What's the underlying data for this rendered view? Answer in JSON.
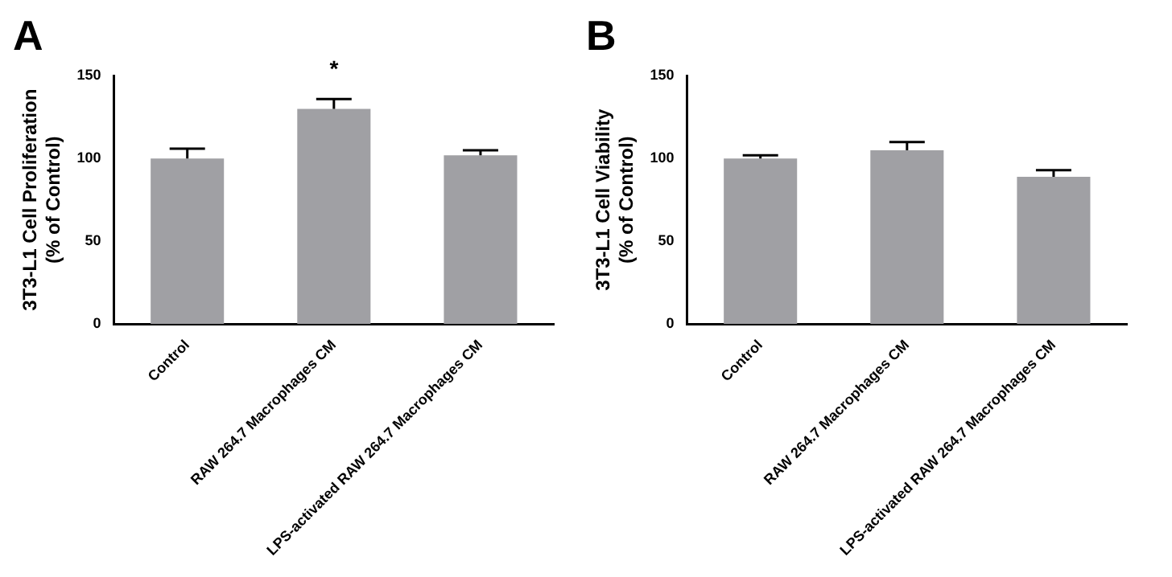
{
  "chart_data": [
    {
      "type": "bar",
      "title": "A",
      "ylabel": "3T3-L1 Cell Proliferation\n(% of Control)",
      "categories": [
        "Control",
        "RAW 264.7 Macrophages CM",
        "LPS-activated RAW 264.7 Macrophages CM"
      ],
      "values": [
        100,
        130,
        102
      ],
      "color": "#a0a0a4",
      "errors": [
        [
          100,
          106
        ],
        [
          130,
          136
        ],
        [
          102,
          105
        ]
      ],
      "ylim": [
        0,
        150
      ],
      "yticks": [
        0,
        50,
        100,
        150
      ],
      "grid": false,
      "legend": false,
      "annotations": [
        "*"
      ]
    },
    {
      "type": "bar",
      "title": "B",
      "ylabel": "3T3-L1 Cell Viability\n(% of Control)",
      "categories": [
        "Control",
        "RAW 264.7 Macrophages CM",
        "LPS-activated RAW 264.7 Macrophages CM"
      ],
      "values": [
        100,
        105,
        89
      ],
      "color": "#a0a0a4",
      "errors": [
        [
          100,
          102
        ],
        [
          105,
          110
        ],
        [
          89,
          93
        ]
      ],
      "ylim": [
        0,
        150
      ],
      "yticks": [
        0,
        50,
        100,
        150
      ],
      "grid": false,
      "legend": false
    }
  ]
}
